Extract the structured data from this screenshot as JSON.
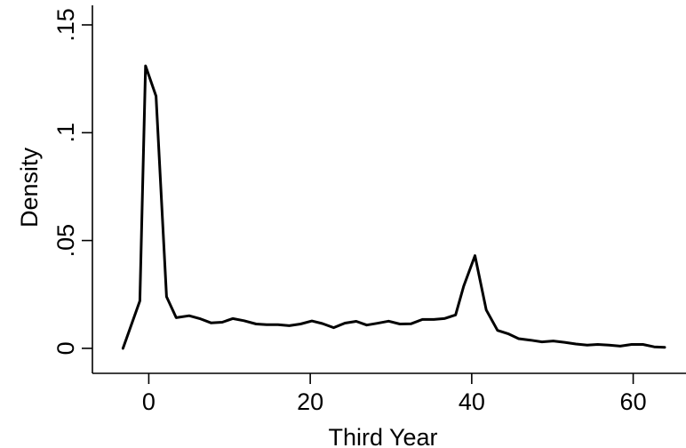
{
  "chart_data": {
    "type": "line",
    "title": "",
    "xlabel": "Third Year",
    "ylabel": "Density",
    "xlim": [
      -5,
      65
    ],
    "ylim": [
      -0.005,
      0.15
    ],
    "xticks": [
      0,
      20,
      40,
      60
    ],
    "xtick_labels": [
      "0",
      "20",
      "40",
      "60"
    ],
    "yticks": [
      0,
      0.05,
      0.1,
      0.15
    ],
    "ytick_labels": [
      "0",
      ".05",
      ".1",
      ".15"
    ],
    "grid": false,
    "legend": "none",
    "series": [
      {
        "color": "#000000",
        "x": [
          -3.2,
          -1.1,
          -0.4,
          0.9,
          2.2,
          3.4,
          5.0,
          6.3,
          7.7,
          9.1,
          10.4,
          11.8,
          13.3,
          14.6,
          16.0,
          17.4,
          18.8,
          20.2,
          21.5,
          22.9,
          24.3,
          25.7,
          27.0,
          28.3,
          29.7,
          31.1,
          32.5,
          33.9,
          35.3,
          36.6,
          38.0,
          39.0,
          40.4,
          41.8,
          43.2,
          44.5,
          45.8,
          47.3,
          48.7,
          50.1,
          51.5,
          52.9,
          54.3,
          55.6,
          57.0,
          58.4,
          59.8,
          61.2,
          62.6,
          63.9
        ],
        "y": [
          0.0,
          0.022,
          0.131,
          0.117,
          0.024,
          0.0142,
          0.0151,
          0.0138,
          0.0118,
          0.0121,
          0.0138,
          0.0128,
          0.0113,
          0.011,
          0.011,
          0.0105,
          0.0113,
          0.0127,
          0.0115,
          0.0096,
          0.0117,
          0.0125,
          0.0108,
          0.0116,
          0.0126,
          0.0113,
          0.0114,
          0.0134,
          0.0134,
          0.0138,
          0.0155,
          0.0288,
          0.043,
          0.0178,
          0.0083,
          0.0068,
          0.0045,
          0.0038,
          0.003,
          0.0034,
          0.0028,
          0.002,
          0.0015,
          0.0018,
          0.0015,
          0.001,
          0.0018,
          0.0018,
          0.0007,
          0.0005
        ]
      }
    ]
  }
}
